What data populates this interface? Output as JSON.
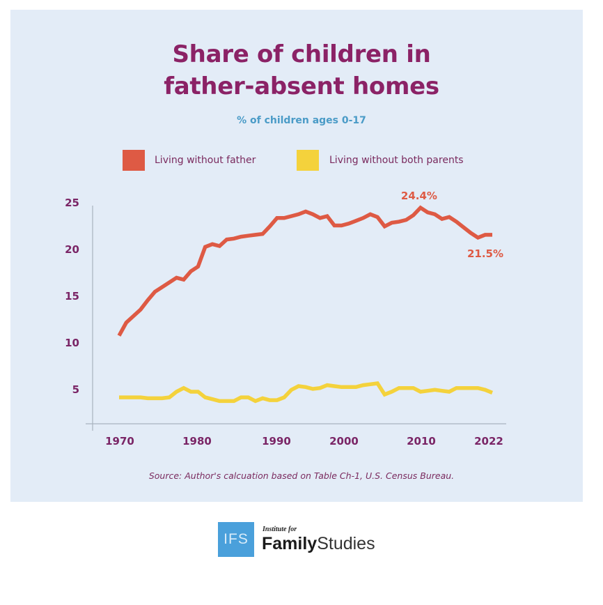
{
  "header": {
    "title_line1": "Share of children in",
    "title_line2": "father-absent homes",
    "subtitle": "% of children ages 0-17"
  },
  "legend": [
    {
      "label": "Living without father",
      "color": "#de5a44"
    },
    {
      "label": "Living without both parents",
      "color": "#f4d23c"
    }
  ],
  "source": "Source: Author's calcuation based on Table Ch-1, U.S. Census Bureau.",
  "logo": {
    "box_text": "IFS",
    "small_text": "Institute for",
    "name_bold": "Family",
    "name_light": "Studies",
    "box_color": "#4aa0db"
  },
  "chart_data": {
    "type": "line",
    "title": "Share of children in father-absent homes",
    "subtitle": "% of children ages 0-17",
    "xlabel": "",
    "ylabel": "",
    "xlim": [
      1970,
      2022
    ],
    "ylim": [
      2,
      25
    ],
    "x_ticks": [
      1970,
      1980,
      1990,
      2000,
      2010,
      2022
    ],
    "x_tick_labels": [
      "1970",
      "1980",
      "1990",
      "2000",
      "2010",
      "2022"
    ],
    "y_ticks": [
      5,
      10,
      15,
      20,
      25
    ],
    "y_tick_labels": [
      "5",
      "10",
      "15",
      "20",
      "25"
    ],
    "grid": false,
    "legend_position": "top",
    "x": [
      1970,
      1971,
      1972,
      1973,
      1974,
      1975,
      1976,
      1977,
      1978,
      1979,
      1980,
      1981,
      1982,
      1983,
      1984,
      1985,
      1986,
      1987,
      1988,
      1989,
      1990,
      1991,
      1992,
      1993,
      1994,
      1995,
      1996,
      1997,
      1998,
      1999,
      2000,
      2001,
      2002,
      2003,
      2004,
      2005,
      2006,
      2007,
      2008,
      2009,
      2010,
      2011,
      2012,
      2013,
      2014,
      2015,
      2016,
      2017,
      2018,
      2019,
      2020,
      2021,
      2022
    ],
    "series": [
      {
        "name": "Living without father",
        "color": "#de5a44",
        "values": [
          10.7,
          12.1,
          12.8,
          13.5,
          14.5,
          15.4,
          15.9,
          16.4,
          16.9,
          16.7,
          17.6,
          18.1,
          20.2,
          20.5,
          20.3,
          21.0,
          21.1,
          21.3,
          21.4,
          21.5,
          21.6,
          22.4,
          23.3,
          23.3,
          23.5,
          23.7,
          24.0,
          23.7,
          23.3,
          23.5,
          22.5,
          22.5,
          22.7,
          23.0,
          23.3,
          23.7,
          23.4,
          22.4,
          22.8,
          22.9,
          23.1,
          23.6,
          24.4,
          23.9,
          23.7,
          23.2,
          23.4,
          22.9,
          22.3,
          21.7,
          21.2,
          21.5,
          21.5
        ]
      },
      {
        "name": "Living without both parents",
        "color": "#f4d23c",
        "values": [
          4.1,
          4.1,
          4.1,
          4.1,
          4.0,
          4.0,
          4.0,
          4.1,
          4.7,
          5.1,
          4.7,
          4.7,
          4.1,
          3.9,
          3.7,
          3.7,
          3.7,
          4.1,
          4.1,
          3.7,
          4.0,
          3.8,
          3.8,
          4.1,
          4.9,
          5.3,
          5.2,
          5.0,
          5.1,
          5.4,
          5.3,
          5.2,
          5.2,
          5.2,
          5.4,
          5.5,
          5.6,
          4.4,
          4.7,
          5.1,
          5.1,
          5.1,
          4.7,
          4.8,
          4.9,
          4.8,
          4.7,
          5.1,
          5.1,
          5.1,
          5.1,
          4.9,
          4.6
        ]
      }
    ],
    "annotations": [
      {
        "text": "24.4%",
        "series": "Living without father",
        "x": 2012,
        "y": 24.4,
        "position": "above"
      },
      {
        "text": "21.5%",
        "series": "Living without father",
        "x": 2022,
        "y": 21.5,
        "position": "below"
      }
    ]
  }
}
